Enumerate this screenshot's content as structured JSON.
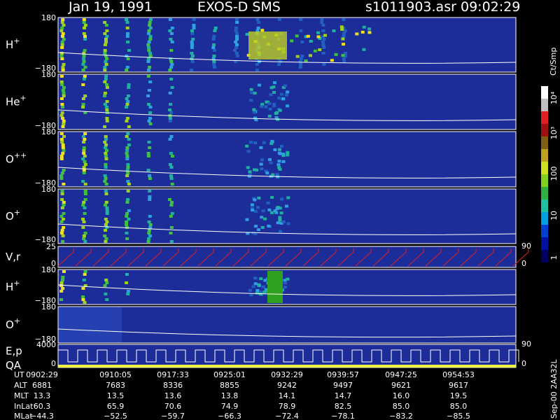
{
  "header": {
    "date": "Jan 19, 1991",
    "instrument": "EXOS-D SMS",
    "file": "s1011903.asr",
    "time": "09:02:29"
  },
  "panels": [
    {
      "label": "H",
      "sup": "+",
      "ticks": [
        "180",
        "−180"
      ]
    },
    {
      "label": "He",
      "sup": "+",
      "ticks": [
        "180",
        "−180"
      ]
    },
    {
      "label": "O",
      "sup": "++",
      "ticks": [
        "180",
        "−180"
      ]
    },
    {
      "label": "O",
      "sup": "+",
      "ticks": [
        "180",
        "−180"
      ]
    },
    {
      "label": "V,r",
      "ticks": [
        "25",
        "0"
      ],
      "right_ticks": [
        "90",
        "0"
      ]
    },
    {
      "label": "H",
      "sup": "+",
      "ticks": [
        "180",
        "−180"
      ]
    },
    {
      "label": "O",
      "sup": "+",
      "ticks": [
        "180",
        "−180"
      ]
    },
    {
      "label": "E,p",
      "label2": "QA",
      "ticks": [
        "4000",
        "0"
      ],
      "right_ticks": [
        "90",
        "0"
      ]
    }
  ],
  "colorbar": {
    "unit": "Ct/Smp",
    "labels": [
      "10⁴",
      "10³",
      "100",
      "10",
      "1"
    ]
  },
  "footer_note": "Sep-00 2AA32L",
  "table": {
    "row_labels": [
      "UT",
      "ALT",
      "MLT",
      "InLat",
      "MLat"
    ],
    "rows": [
      [
        "0902:29",
        "0910:05",
        "0917:33",
        "0925:01",
        "0932:29",
        "0939:57",
        "0947:25",
        "0954:53"
      ],
      [
        "6881",
        "7683",
        "8336",
        "8855",
        "9242",
        "9497",
        "9621",
        "9617"
      ],
      [
        "13.3",
        "13.5",
        "13.6",
        "13.8",
        "14.1",
        "14.7",
        "16.0",
        "19.5"
      ],
      [
        "60.3",
        "65.9",
        "70.6",
        "74.9",
        "78.9",
        "82.5",
        "85.0",
        "85.0"
      ],
      [
        "−44.3",
        "−52.5",
        "−59.7",
        "−66.3",
        "−72.4",
        "−78.1",
        "−83.2",
        "−85.5"
      ]
    ]
  }
}
